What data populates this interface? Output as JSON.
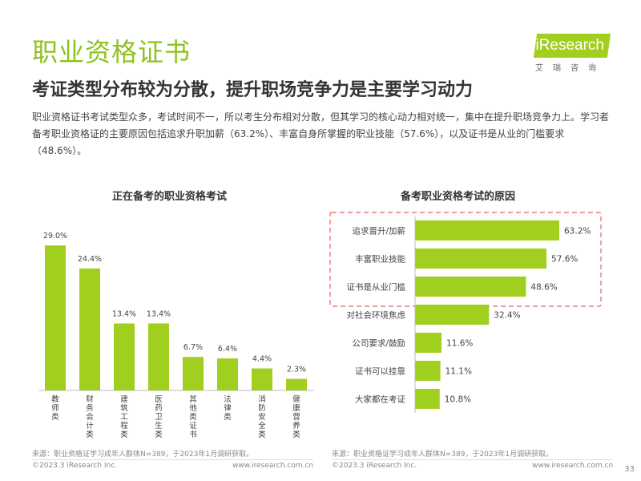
{
  "header": {
    "title": "职业资格证书",
    "subtitle": "考证类型分布较为分散，提升职场竞争力是主要学习动力",
    "body": "职业资格证书考试类型众多，考试时间不一，所以考生分布相对分散，但其学习的核心动力相对统一，集中在提升职场竞争力上。学习者备考职业资格证的主要原因包括追求升职加薪（63.2%）、丰富自身所掌握的职业技能（57.6%），以及证书是从业的门槛要求（48.6%）。"
  },
  "logo": {
    "text": "iResearch",
    "cn": "艾瑞咨询"
  },
  "colors": {
    "bar": "#a0cf1f",
    "accent_title": "#8dc21f",
    "highlight_box": "#e06666"
  },
  "chart_data": [
    {
      "type": "bar",
      "title": "正在备考的职业资格考试",
      "categories": [
        "教师类",
        "财务会计类",
        "建筑工程类",
        "医药卫生类",
        "其他类证书",
        "法律类",
        "消防安全类",
        "健康营养类"
      ],
      "values": [
        29.0,
        24.4,
        13.4,
        13.4,
        6.7,
        6.4,
        4.4,
        2.3
      ],
      "value_labels": [
        "29.0%",
        "24.4%",
        "13.4%",
        "13.4%",
        "6.7%",
        "6.4%",
        "4.4%",
        "2.3%"
      ],
      "ylim": [
        0,
        30
      ]
    },
    {
      "type": "bar",
      "orientation": "horizontal",
      "title": "备考职业资格考试的原因",
      "categories": [
        "追求晋升/加薪",
        "丰富职业技能",
        "证书是从业门槛",
        "对社会环境焦虑",
        "公司要求/鼓励",
        "证书可以挂靠",
        "大家都在考证"
      ],
      "values": [
        63.2,
        57.6,
        48.6,
        32.4,
        11.6,
        11.1,
        10.8
      ],
      "value_labels": [
        "63.2%",
        "57.6%",
        "48.6%",
        "32.4%",
        "11.6%",
        "11.1%",
        "10.8%"
      ],
      "xlim": [
        0,
        70
      ],
      "highlighted_top": 3
    }
  ],
  "sources": {
    "left": "来源：职业资格证学习成年人群体N=389，于2023年1月调研获取。",
    "right": "来源：职业资格证学习成年人群体N=389，于2023年1月调研获取。"
  },
  "footer": {
    "copyright_left": "©2023.3 iResearch Inc.",
    "url_left": "www.iresearch.com.cn",
    "copyright_right": "©2023.3 iResearch Inc.",
    "url_right": "www.iresearch.com.cn",
    "page": "33"
  }
}
